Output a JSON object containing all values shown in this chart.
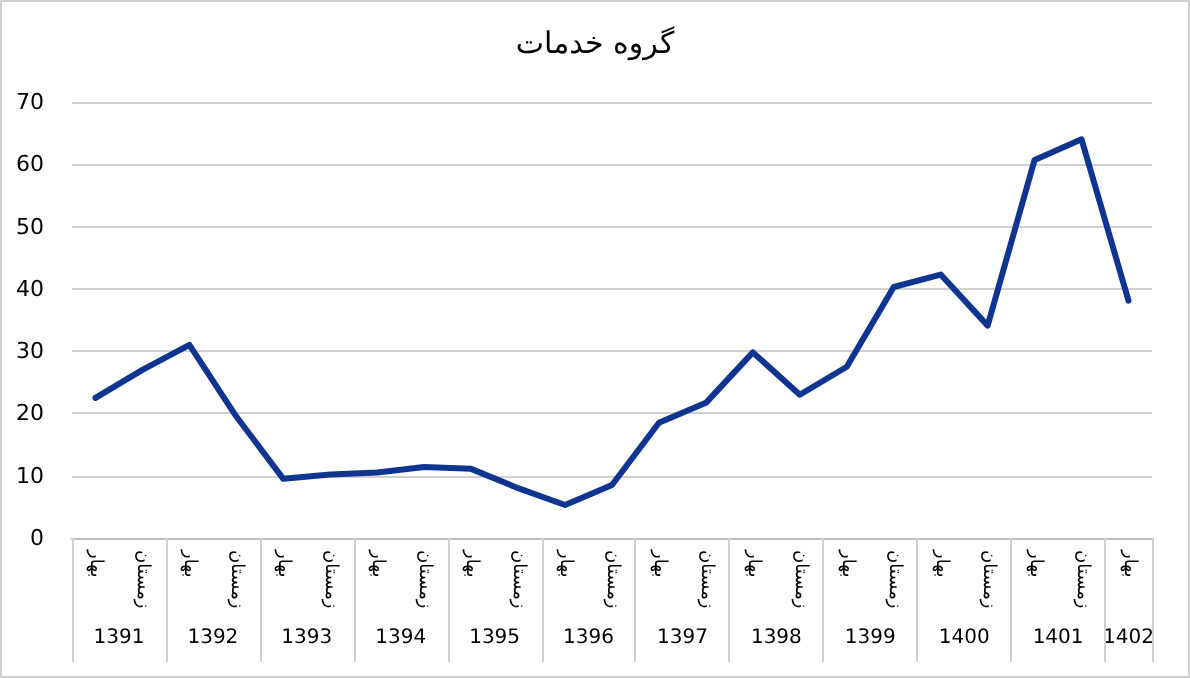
{
  "chart_data": {
    "type": "line",
    "title": "گروه خدمات",
    "categories": [
      "بهار",
      "زمستان",
      "بهار",
      "زمستان",
      "بهار",
      "زمستان",
      "بهار",
      "زمستان",
      "بهار",
      "زمستان",
      "بهار",
      "زمستان",
      "بهار",
      "زمستان",
      "بهار",
      "زمستان",
      "بهار",
      "زمستان",
      "بهار",
      "زمستان",
      "بهار",
      "زمستان",
      "بهار"
    ],
    "series": [
      {
        "color": "#0f3591",
        "values": [
          22.5,
          27,
          31,
          19.5,
          9.5,
          10.2,
          10.5,
          11.4,
          11.1,
          8,
          5.3,
          8.5,
          18.5,
          21.7,
          29.8,
          23,
          27.5,
          40.3,
          42.3,
          34.1,
          60.7,
          64,
          38.1
        ]
      }
    ],
    "annotations": [
      "1391",
      "1392",
      "1393",
      "1394",
      "1395",
      "1396",
      "1397",
      "1398",
      "1399",
      "1400",
      "1401",
      "1402"
    ],
    "ylim": [
      0,
      70
    ],
    "yticks": [
      0,
      10,
      20,
      30,
      40,
      50,
      60,
      70
    ],
    "grid": "y",
    "marker": "none",
    "line_style": "solid"
  }
}
